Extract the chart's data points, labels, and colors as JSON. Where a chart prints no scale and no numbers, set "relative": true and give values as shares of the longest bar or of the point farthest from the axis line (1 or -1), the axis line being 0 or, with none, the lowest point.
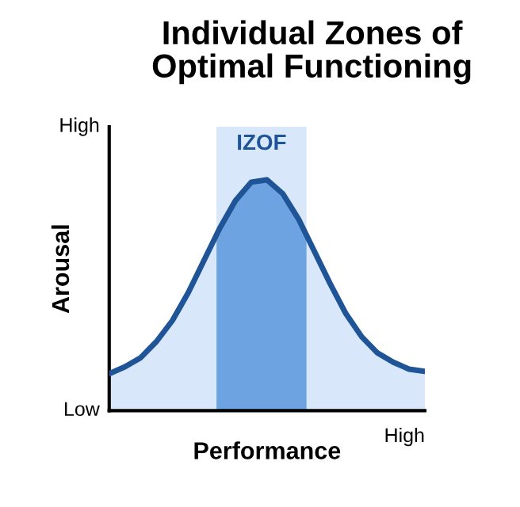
{
  "chart_data": {
    "type": "area",
    "title": "Individual Zones of\nOptimal Functioning",
    "xlabel": "Performance",
    "ylabel": "Arousal",
    "relative": true,
    "categories": [
      null,
      null,
      null,
      null,
      null,
      null,
      null,
      null,
      null,
      null,
      null,
      null,
      null,
      null,
      null,
      null,
      null,
      null,
      null,
      null,
      null
    ],
    "series": [
      {
        "color": "#1f5497",
        "values": [
          0.16,
          0.19,
          0.23,
          0.3,
          0.39,
          0.51,
          0.65,
          0.79,
          0.91,
          0.99,
          1.0,
          0.94,
          0.83,
          0.69,
          0.55,
          0.42,
          0.32,
          0.25,
          0.21,
          0.18,
          0.17
        ]
      }
    ],
    "annotations": [
      "IZOF",
      "High",
      "Low",
      "High"
    ]
  }
}
